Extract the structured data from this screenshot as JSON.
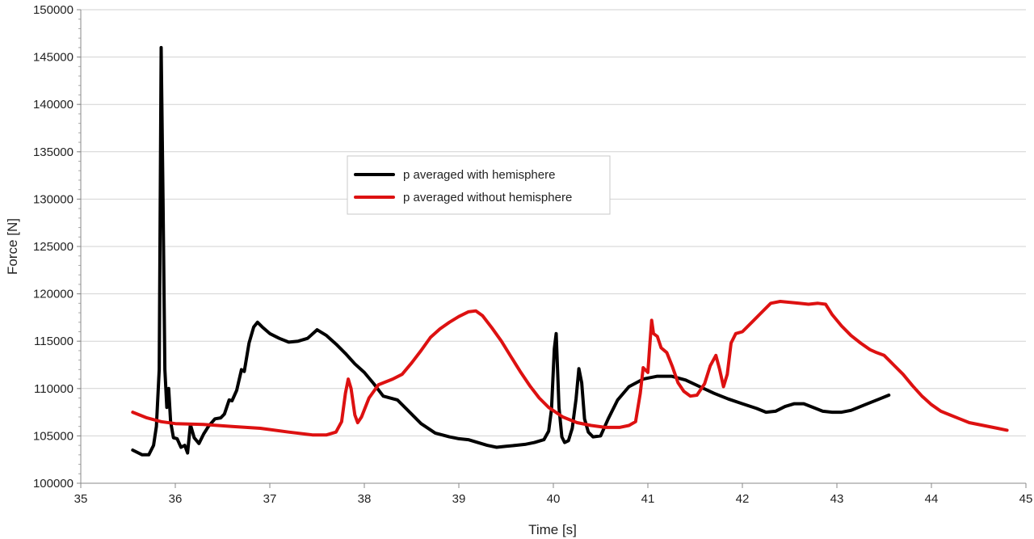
{
  "chart_data": {
    "type": "line",
    "title": "",
    "xlabel": "Time [s]",
    "ylabel": "Force [N]",
    "xlim": [
      35,
      45
    ],
    "ylim": [
      100000,
      150000
    ],
    "x_ticks": [
      "35",
      "36",
      "37",
      "38",
      "39",
      "40",
      "41",
      "42",
      "43",
      "44",
      "45"
    ],
    "y_ticks": [
      "100000",
      "105000",
      "110000",
      "115000",
      "120000",
      "125000",
      "130000",
      "135000",
      "140000",
      "145000",
      "150000"
    ],
    "grid": "horizontal",
    "legend_position": "center",
    "series": [
      {
        "name": "p averaged with hemisphere",
        "color": "#000000",
        "points": [
          [
            35.55,
            103500
          ],
          [
            35.65,
            103000
          ],
          [
            35.72,
            103000
          ],
          [
            35.77,
            104000
          ],
          [
            35.8,
            106000
          ],
          [
            35.83,
            112000
          ],
          [
            35.85,
            146000
          ],
          [
            35.87,
            130000
          ],
          [
            35.89,
            112000
          ],
          [
            35.91,
            108000
          ],
          [
            35.93,
            110000
          ],
          [
            35.95,
            106500
          ],
          [
            35.98,
            104800
          ],
          [
            36.02,
            104700
          ],
          [
            36.06,
            103800
          ],
          [
            36.1,
            104000
          ],
          [
            36.13,
            103200
          ],
          [
            36.16,
            106200
          ],
          [
            36.2,
            104800
          ],
          [
            36.25,
            104200
          ],
          [
            36.3,
            105200
          ],
          [
            36.35,
            106000
          ],
          [
            36.42,
            106800
          ],
          [
            36.48,
            106900
          ],
          [
            36.52,
            107300
          ],
          [
            36.57,
            108800
          ],
          [
            36.6,
            108700
          ],
          [
            36.65,
            109800
          ],
          [
            36.7,
            112000
          ],
          [
            36.73,
            111800
          ],
          [
            36.78,
            114800
          ],
          [
            36.83,
            116500
          ],
          [
            36.87,
            117000
          ],
          [
            36.92,
            116500
          ],
          [
            37.0,
            115800
          ],
          [
            37.1,
            115300
          ],
          [
            37.2,
            114900
          ],
          [
            37.3,
            115000
          ],
          [
            37.4,
            115300
          ],
          [
            37.5,
            116200
          ],
          [
            37.6,
            115600
          ],
          [
            37.7,
            114700
          ],
          [
            37.8,
            113700
          ],
          [
            37.9,
            112600
          ],
          [
            38.0,
            111700
          ],
          [
            38.1,
            110500
          ],
          [
            38.2,
            109200
          ],
          [
            38.35,
            108800
          ],
          [
            38.5,
            107300
          ],
          [
            38.6,
            106300
          ],
          [
            38.75,
            105300
          ],
          [
            38.9,
            104900
          ],
          [
            39.0,
            104700
          ],
          [
            39.1,
            104600
          ],
          [
            39.2,
            104300
          ],
          [
            39.3,
            104000
          ],
          [
            39.4,
            103800
          ],
          [
            39.5,
            103900
          ],
          [
            39.6,
            104000
          ],
          [
            39.7,
            104100
          ],
          [
            39.8,
            104300
          ],
          [
            39.9,
            104600
          ],
          [
            39.95,
            105500
          ],
          [
            39.98,
            107800
          ],
          [
            40.01,
            114200
          ],
          [
            40.03,
            115800
          ],
          [
            40.06,
            108000
          ],
          [
            40.09,
            104900
          ],
          [
            40.12,
            104300
          ],
          [
            40.16,
            104500
          ],
          [
            40.2,
            105800
          ],
          [
            40.24,
            108900
          ],
          [
            40.27,
            112100
          ],
          [
            40.3,
            110600
          ],
          [
            40.33,
            106800
          ],
          [
            40.37,
            105400
          ],
          [
            40.42,
            104900
          ],
          [
            40.5,
            105000
          ],
          [
            40.58,
            106800
          ],
          [
            40.68,
            108800
          ],
          [
            40.8,
            110200
          ],
          [
            40.95,
            111000
          ],
          [
            41.1,
            111300
          ],
          [
            41.25,
            111300
          ],
          [
            41.4,
            110900
          ],
          [
            41.55,
            110200
          ],
          [
            41.7,
            109500
          ],
          [
            41.85,
            108900
          ],
          [
            42.0,
            108400
          ],
          [
            42.15,
            107900
          ],
          [
            42.25,
            107500
          ],
          [
            42.35,
            107600
          ],
          [
            42.45,
            108100
          ],
          [
            42.55,
            108400
          ],
          [
            42.65,
            108400
          ],
          [
            42.75,
            108000
          ],
          [
            42.85,
            107600
          ],
          [
            42.95,
            107500
          ],
          [
            43.05,
            107500
          ],
          [
            43.15,
            107700
          ],
          [
            43.3,
            108300
          ],
          [
            43.45,
            108900
          ],
          [
            43.55,
            109300
          ]
        ]
      },
      {
        "name": "p averaged without hemisphere",
        "color": "#dd1111",
        "points": [
          [
            35.55,
            107500
          ],
          [
            35.7,
            106900
          ],
          [
            35.85,
            106500
          ],
          [
            36.0,
            106300
          ],
          [
            36.3,
            106200
          ],
          [
            36.6,
            106000
          ],
          [
            36.9,
            105800
          ],
          [
            37.2,
            105400
          ],
          [
            37.45,
            105100
          ],
          [
            37.6,
            105100
          ],
          [
            37.7,
            105400
          ],
          [
            37.76,
            106500
          ],
          [
            37.8,
            109500
          ],
          [
            37.83,
            111000
          ],
          [
            37.86,
            110000
          ],
          [
            37.9,
            107200
          ],
          [
            37.93,
            106400
          ],
          [
            37.97,
            107000
          ],
          [
            38.05,
            109000
          ],
          [
            38.15,
            110400
          ],
          [
            38.3,
            111000
          ],
          [
            38.4,
            111500
          ],
          [
            38.5,
            112700
          ],
          [
            38.6,
            114000
          ],
          [
            38.7,
            115400
          ],
          [
            38.8,
            116300
          ],
          [
            38.9,
            117000
          ],
          [
            39.0,
            117600
          ],
          [
            39.1,
            118100
          ],
          [
            39.18,
            118200
          ],
          [
            39.25,
            117700
          ],
          [
            39.35,
            116400
          ],
          [
            39.45,
            115000
          ],
          [
            39.55,
            113400
          ],
          [
            39.65,
            111800
          ],
          [
            39.75,
            110300
          ],
          [
            39.85,
            109000
          ],
          [
            39.95,
            108000
          ],
          [
            40.1,
            107000
          ],
          [
            40.25,
            106400
          ],
          [
            40.4,
            106100
          ],
          [
            40.55,
            105900
          ],
          [
            40.7,
            105900
          ],
          [
            40.8,
            106100
          ],
          [
            40.87,
            106500
          ],
          [
            40.92,
            109500
          ],
          [
            40.95,
            112200
          ],
          [
            41.0,
            111700
          ],
          [
            41.02,
            114500
          ],
          [
            41.04,
            117200
          ],
          [
            41.06,
            115800
          ],
          [
            41.1,
            115500
          ],
          [
            41.14,
            114300
          ],
          [
            41.2,
            113800
          ],
          [
            41.26,
            112300
          ],
          [
            41.32,
            110600
          ],
          [
            41.38,
            109700
          ],
          [
            41.45,
            109200
          ],
          [
            41.52,
            109300
          ],
          [
            41.6,
            110500
          ],
          [
            41.66,
            112400
          ],
          [
            41.72,
            113500
          ],
          [
            41.76,
            112000
          ],
          [
            41.8,
            110200
          ],
          [
            41.84,
            111500
          ],
          [
            41.88,
            114800
          ],
          [
            41.93,
            115800
          ],
          [
            42.0,
            116000
          ],
          [
            42.1,
            117000
          ],
          [
            42.2,
            118000
          ],
          [
            42.3,
            119000
          ],
          [
            42.4,
            119200
          ],
          [
            42.5,
            119100
          ],
          [
            42.6,
            119000
          ],
          [
            42.7,
            118900
          ],
          [
            42.8,
            119000
          ],
          [
            42.88,
            118900
          ],
          [
            42.95,
            117800
          ],
          [
            43.05,
            116600
          ],
          [
            43.15,
            115600
          ],
          [
            43.25,
            114800
          ],
          [
            43.35,
            114100
          ],
          [
            43.42,
            113800
          ],
          [
            43.5,
            113500
          ],
          [
            43.55,
            113000
          ],
          [
            43.6,
            112500
          ],
          [
            43.7,
            111500
          ],
          [
            43.8,
            110300
          ],
          [
            43.9,
            109200
          ],
          [
            44.0,
            108300
          ],
          [
            44.1,
            107600
          ],
          [
            44.2,
            107200
          ],
          [
            44.3,
            106800
          ],
          [
            44.4,
            106400
          ],
          [
            44.55,
            106100
          ],
          [
            44.7,
            105800
          ],
          [
            44.8,
            105600
          ]
        ]
      }
    ]
  }
}
